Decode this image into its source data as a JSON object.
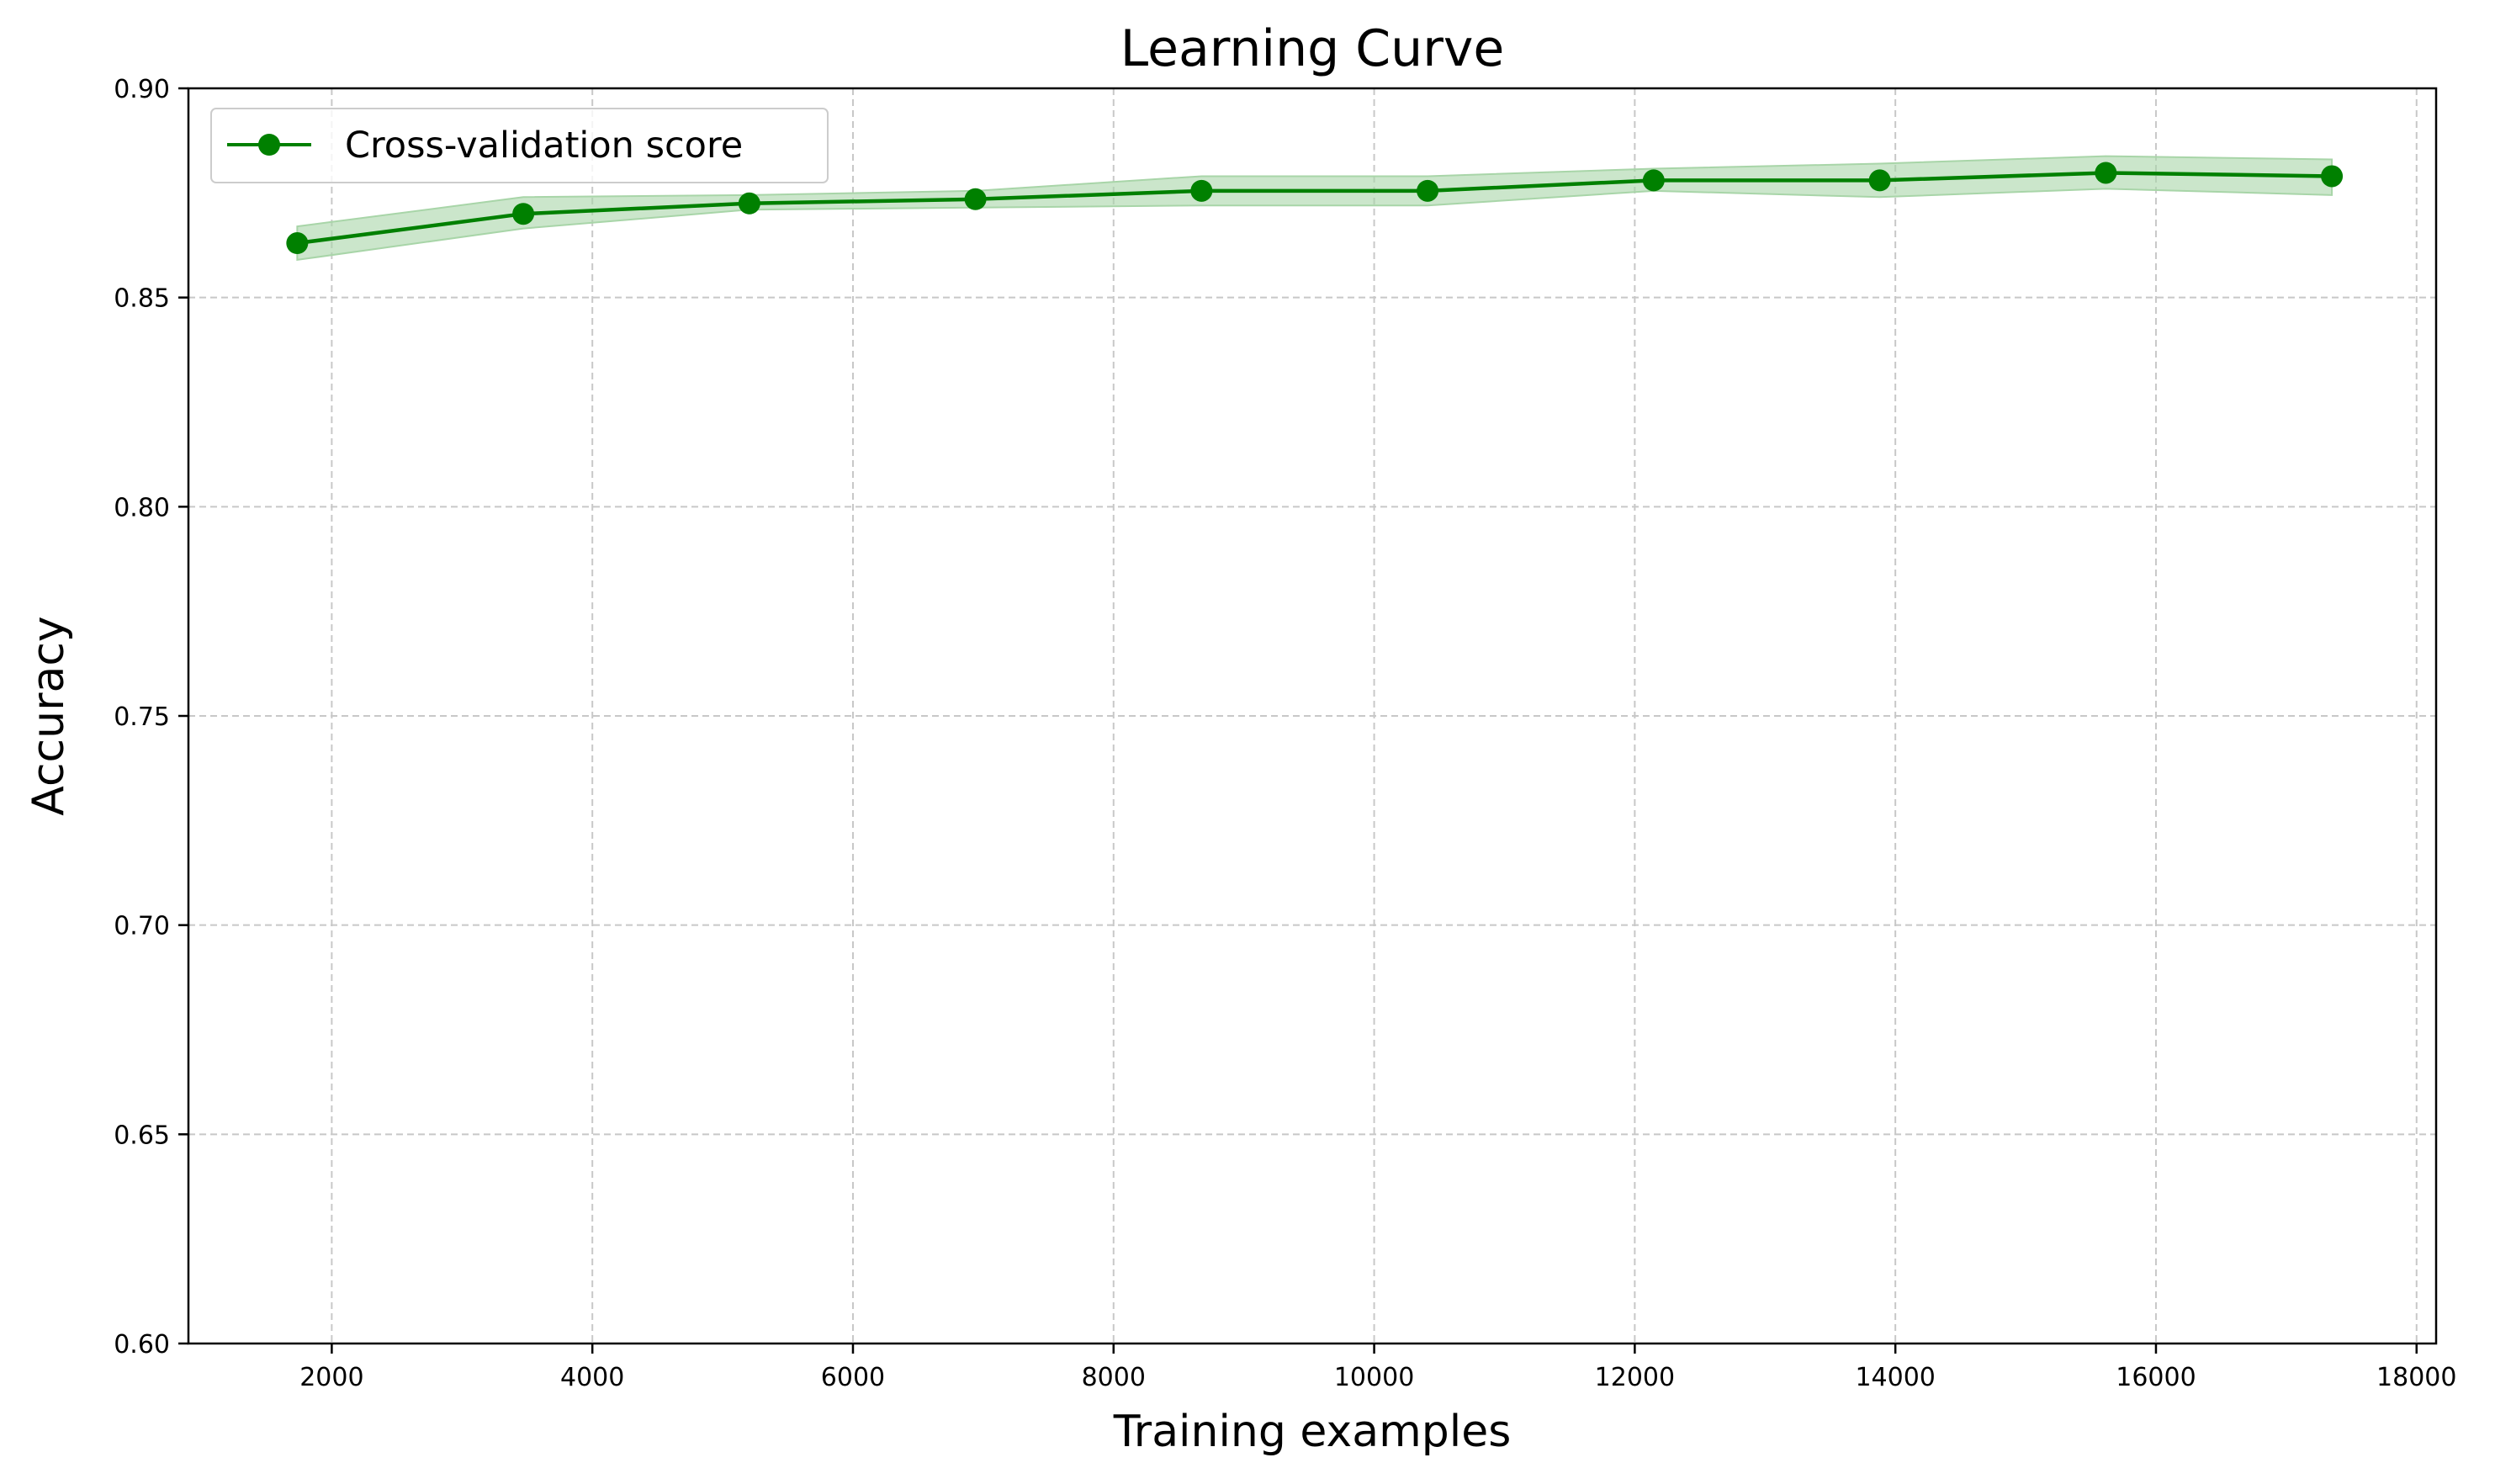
{
  "chart_data": {
    "type": "line",
    "title": "Learning Curve",
    "xlabel": "Training examples",
    "ylabel": "Accuracy",
    "xlim": [
      900,
      18150
    ],
    "ylim": [
      0.6,
      0.9
    ],
    "xticks": [
      2000,
      4000,
      6000,
      8000,
      10000,
      12000,
      14000,
      16000,
      18000
    ],
    "xtick_labels": [
      "2000",
      "4000",
      "6000",
      "8000",
      "10000",
      "12000",
      "14000",
      "16000",
      "18000"
    ],
    "yticks": [
      0.6,
      0.65,
      0.7,
      0.75,
      0.8,
      0.85,
      0.9
    ],
    "ytick_labels": [
      "0.60",
      "0.65",
      "0.70",
      "0.75",
      "0.80",
      "0.85",
      "0.90"
    ],
    "grid": true,
    "legend_position": "top-left",
    "series": [
      {
        "name": "Cross-validation score",
        "color": "#008000",
        "band_color": "#a8d5a8",
        "marker": "circle",
        "x": [
          1735,
          3470,
          5205,
          6940,
          8675,
          10410,
          12145,
          13880,
          15615,
          17350
        ],
        "y": [
          0.863,
          0.87,
          0.8725,
          0.8735,
          0.8755,
          0.8755,
          0.878,
          0.878,
          0.8798,
          0.879
        ],
        "band_lower": [
          0.859,
          0.8665,
          0.871,
          0.8715,
          0.872,
          0.872,
          0.8755,
          0.874,
          0.876,
          0.8745
        ],
        "band_upper": [
          0.867,
          0.874,
          0.8745,
          0.8755,
          0.879,
          0.879,
          0.8808,
          0.882,
          0.8838,
          0.883
        ]
      }
    ]
  }
}
